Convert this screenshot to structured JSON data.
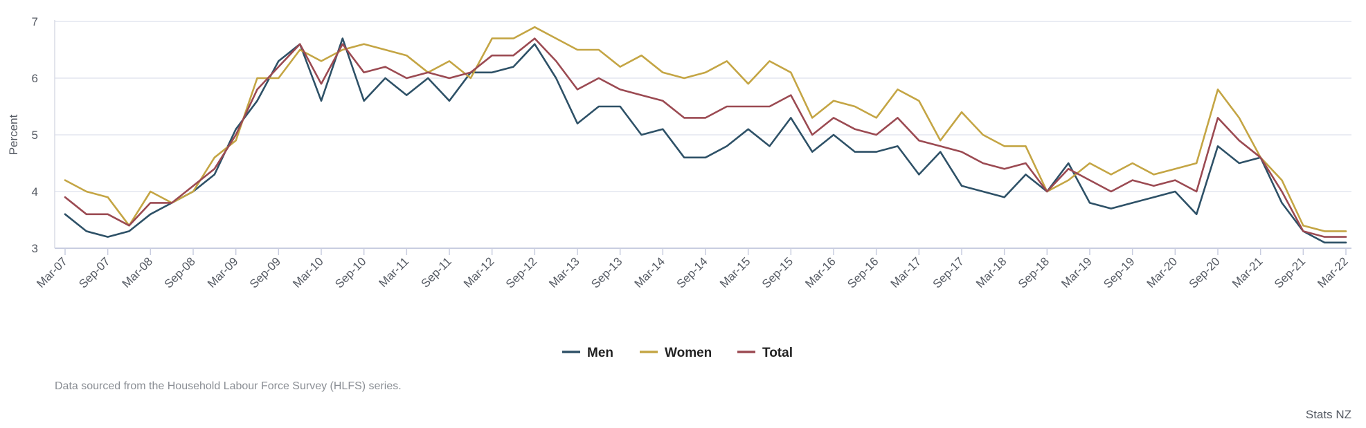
{
  "chart_data": {
    "type": "line",
    "title": "",
    "xlabel": "",
    "ylabel": "Percent",
    "ylim": [
      3,
      7
    ],
    "yticks": [
      3,
      4,
      5,
      6,
      7
    ],
    "grid": true,
    "legend_position": "bottom-center",
    "x_tick_labels": [
      "Mar-07",
      "Sep-07",
      "Mar-08",
      "Sep-08",
      "Mar-09",
      "Sep-09",
      "Mar-10",
      "Sep-10",
      "Mar-11",
      "Sep-11",
      "Mar-12",
      "Sep-12",
      "Mar-13",
      "Sep-13",
      "Mar-14",
      "Sep-14",
      "Mar-15",
      "Sep-15",
      "Mar-16",
      "Sep-16",
      "Mar-17",
      "Sep-17",
      "Mar-18",
      "Sep-18",
      "Mar-19",
      "Sep-19",
      "Mar-20",
      "Sep-20",
      "Mar-21",
      "Sep-21",
      "Mar-22"
    ],
    "x": [
      "Mar-07",
      "Jun-07",
      "Sep-07",
      "Dec-07",
      "Mar-08",
      "Jun-08",
      "Sep-08",
      "Dec-08",
      "Mar-09",
      "Jun-09",
      "Sep-09",
      "Dec-09",
      "Mar-10",
      "Jun-10",
      "Sep-10",
      "Dec-10",
      "Mar-11",
      "Jun-11",
      "Sep-11",
      "Dec-11",
      "Mar-12",
      "Jun-12",
      "Sep-12",
      "Dec-12",
      "Mar-13",
      "Jun-13",
      "Sep-13",
      "Dec-13",
      "Mar-14",
      "Jun-14",
      "Sep-14",
      "Dec-14",
      "Mar-15",
      "Jun-15",
      "Sep-15",
      "Dec-15",
      "Mar-16",
      "Jun-16",
      "Sep-16",
      "Dec-16",
      "Mar-17",
      "Jun-17",
      "Sep-17",
      "Dec-17",
      "Mar-18",
      "Jun-18",
      "Sep-18",
      "Dec-18",
      "Mar-19",
      "Jun-19",
      "Sep-19",
      "Dec-19",
      "Mar-20",
      "Jun-20",
      "Sep-20",
      "Dec-20",
      "Mar-21",
      "Jun-21",
      "Sep-21",
      "Dec-21",
      "Mar-22"
    ],
    "series": [
      {
        "name": "Men",
        "color": "#2e5167",
        "values": [
          3.6,
          3.3,
          3.2,
          3.3,
          3.6,
          3.8,
          4.0,
          4.3,
          5.1,
          5.6,
          6.3,
          6.6,
          5.6,
          6.7,
          5.6,
          6.0,
          5.7,
          6.0,
          5.6,
          6.1,
          6.1,
          6.2,
          6.6,
          6.0,
          5.2,
          5.5,
          5.5,
          5.0,
          5.1,
          4.6,
          4.6,
          4.8,
          5.1,
          4.8,
          5.3,
          4.7,
          5.0,
          4.7,
          4.7,
          4.8,
          4.3,
          4.7,
          4.1,
          4.0,
          3.9,
          4.3,
          4.0,
          4.5,
          3.8,
          3.7,
          3.8,
          3.9,
          4.0,
          3.6,
          4.8,
          4.5,
          4.6,
          3.8,
          3.3,
          3.1,
          3.1
        ]
      },
      {
        "name": "Women",
        "color": "#c4a544",
        "values": [
          4.2,
          4.0,
          3.9,
          3.4,
          4.0,
          3.8,
          4.0,
          4.6,
          4.9,
          6.0,
          6.0,
          6.5,
          6.3,
          6.5,
          6.6,
          6.5,
          6.4,
          6.1,
          6.3,
          6.0,
          6.7,
          6.7,
          6.9,
          6.7,
          6.5,
          6.5,
          6.2,
          6.4,
          6.1,
          6.0,
          6.1,
          6.3,
          5.9,
          6.3,
          6.1,
          5.3,
          5.6,
          5.5,
          5.3,
          5.8,
          5.6,
          4.9,
          5.4,
          5.0,
          4.8,
          4.8,
          4.0,
          4.2,
          4.5,
          4.3,
          4.5,
          4.3,
          4.4,
          4.5,
          5.8,
          5.3,
          4.6,
          4.2,
          3.4,
          3.3,
          3.3
        ]
      },
      {
        "name": "Total",
        "color": "#9b4a52",
        "values": [
          3.9,
          3.6,
          3.6,
          3.4,
          3.8,
          3.8,
          4.1,
          4.4,
          5.0,
          5.8,
          6.2,
          6.6,
          5.9,
          6.6,
          6.1,
          6.2,
          6.0,
          6.1,
          6.0,
          6.1,
          6.4,
          6.4,
          6.7,
          6.3,
          5.8,
          6.0,
          5.8,
          5.7,
          5.6,
          5.3,
          5.3,
          5.5,
          5.5,
          5.5,
          5.7,
          5.0,
          5.3,
          5.1,
          5.0,
          5.3,
          4.9,
          4.8,
          4.7,
          4.5,
          4.4,
          4.5,
          4.0,
          4.4,
          4.2,
          4.0,
          4.2,
          4.1,
          4.2,
          4.0,
          5.3,
          4.9,
          4.6,
          4.0,
          3.3,
          3.2,
          3.2
        ]
      }
    ]
  },
  "footnote": "Data sourced from the Household Labour Force Survey (HLFS) series.",
  "credit": "Stats NZ"
}
